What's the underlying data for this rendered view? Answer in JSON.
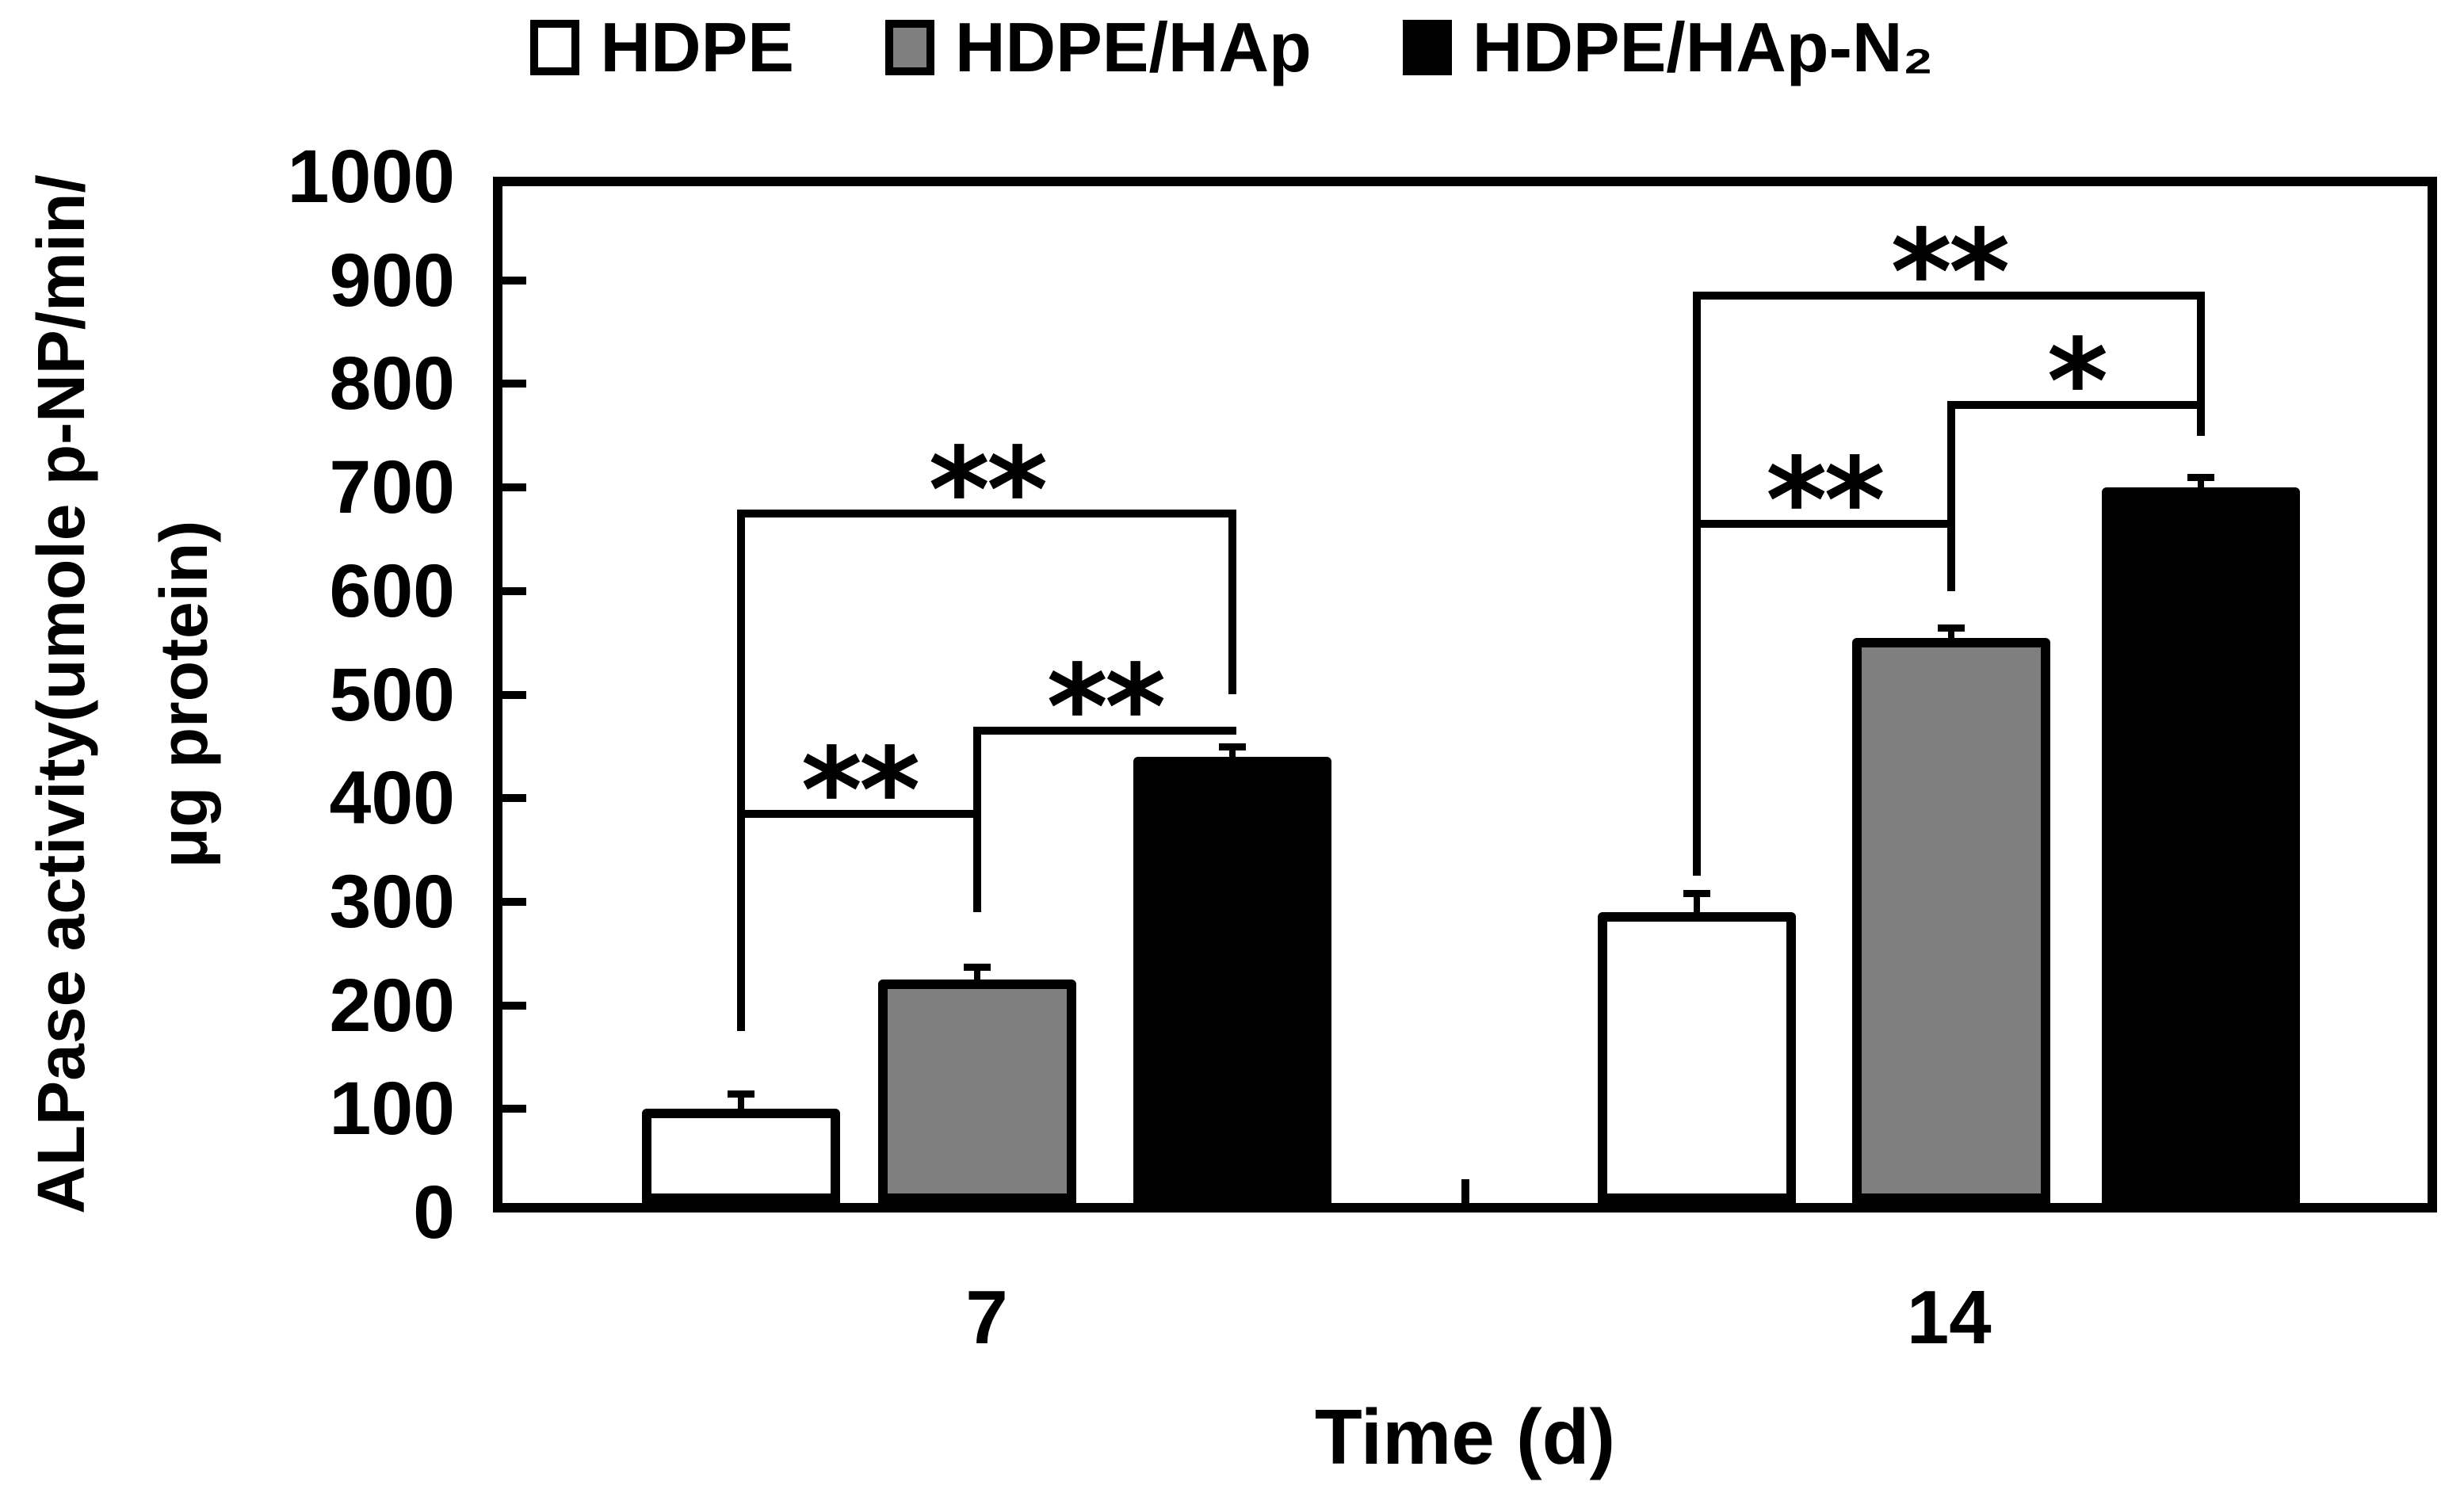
{
  "chart": {
    "legend": {
      "items": [
        {
          "label": "HDPE",
          "swatch_fill": "#ffffff"
        },
        {
          "label": "HDPE/HAp",
          "swatch_fill": "#7f7f7f"
        },
        {
          "label": "HDPE/HAp-N₂",
          "swatch_fill": "#000000"
        }
      ]
    },
    "y_axis": {
      "title_line1": "ALPase activity(umole p-NP/min/",
      "title_line2": "μg protein)",
      "min": 0,
      "max": 1000,
      "tick_step": 100
    },
    "x_axis": {
      "title": "Time (d)",
      "categories": [
        "7",
        "14"
      ]
    },
    "colors": {
      "axis": "#000000",
      "gray_series": "#7f7f7f",
      "background": "#ffffff"
    }
  },
  "chart_data": {
    "type": "bar",
    "title": "",
    "xlabel": "Time (d)",
    "ylabel": "ALPase activity(umole p-NP/min/ μg protein)",
    "ylim": [
      0,
      1000
    ],
    "ytick_step": 100,
    "grid": false,
    "legend_position": "top",
    "categories": [
      "7",
      "14"
    ],
    "series": [
      {
        "name": "HDPE",
        "fill": "#ffffff",
        "values": [
          100,
          290
        ],
        "errors": [
          15,
          18
        ]
      },
      {
        "name": "HDPE/HAp",
        "fill": "#7f7f7f",
        "values": [
          225,
          555
        ],
        "errors": [
          12,
          10
        ]
      },
      {
        "name": "HDPE/HAp-N₂",
        "fill": "#000000",
        "values": [
          440,
          700
        ],
        "errors": [
          10,
          10
        ]
      }
    ],
    "significance": [
      {
        "group": 0,
        "pairs": [
          {
            "a": 0,
            "b": 2,
            "level": 675,
            "label": "**"
          },
          {
            "a": 1,
            "b": 2,
            "level": 465,
            "label": "**"
          },
          {
            "a": 0,
            "b": 1,
            "level": 385,
            "label": "**"
          }
        ],
        "stems": [
          {
            "series": 0,
            "top": 675,
            "bottom": 175
          },
          {
            "series": 2,
            "top": 675,
            "bottom": 500
          },
          {
            "series": 1,
            "top": 465,
            "bottom": 290
          }
        ]
      },
      {
        "group": 1,
        "pairs": [
          {
            "a": 0,
            "b": 2,
            "level": 885,
            "label": "**"
          },
          {
            "a": 1,
            "b": 2,
            "level": 780,
            "label": "*"
          },
          {
            "a": 0,
            "b": 1,
            "level": 665,
            "label": "**"
          }
        ],
        "stems": [
          {
            "series": 0,
            "top": 885,
            "bottom": 325
          },
          {
            "series": 2,
            "top": 885,
            "bottom": 750
          },
          {
            "series": 1,
            "top": 780,
            "bottom": 600
          }
        ]
      }
    ],
    "layout": {
      "bar_centers_pct": [
        [
          12.76,
          24.91,
          38.03
        ],
        [
          61.92,
          75.01,
          87.85
        ]
      ],
      "bar_width_pct": 10.2,
      "group_label_centers_pct": [
        25.4,
        74.9
      ]
    }
  }
}
